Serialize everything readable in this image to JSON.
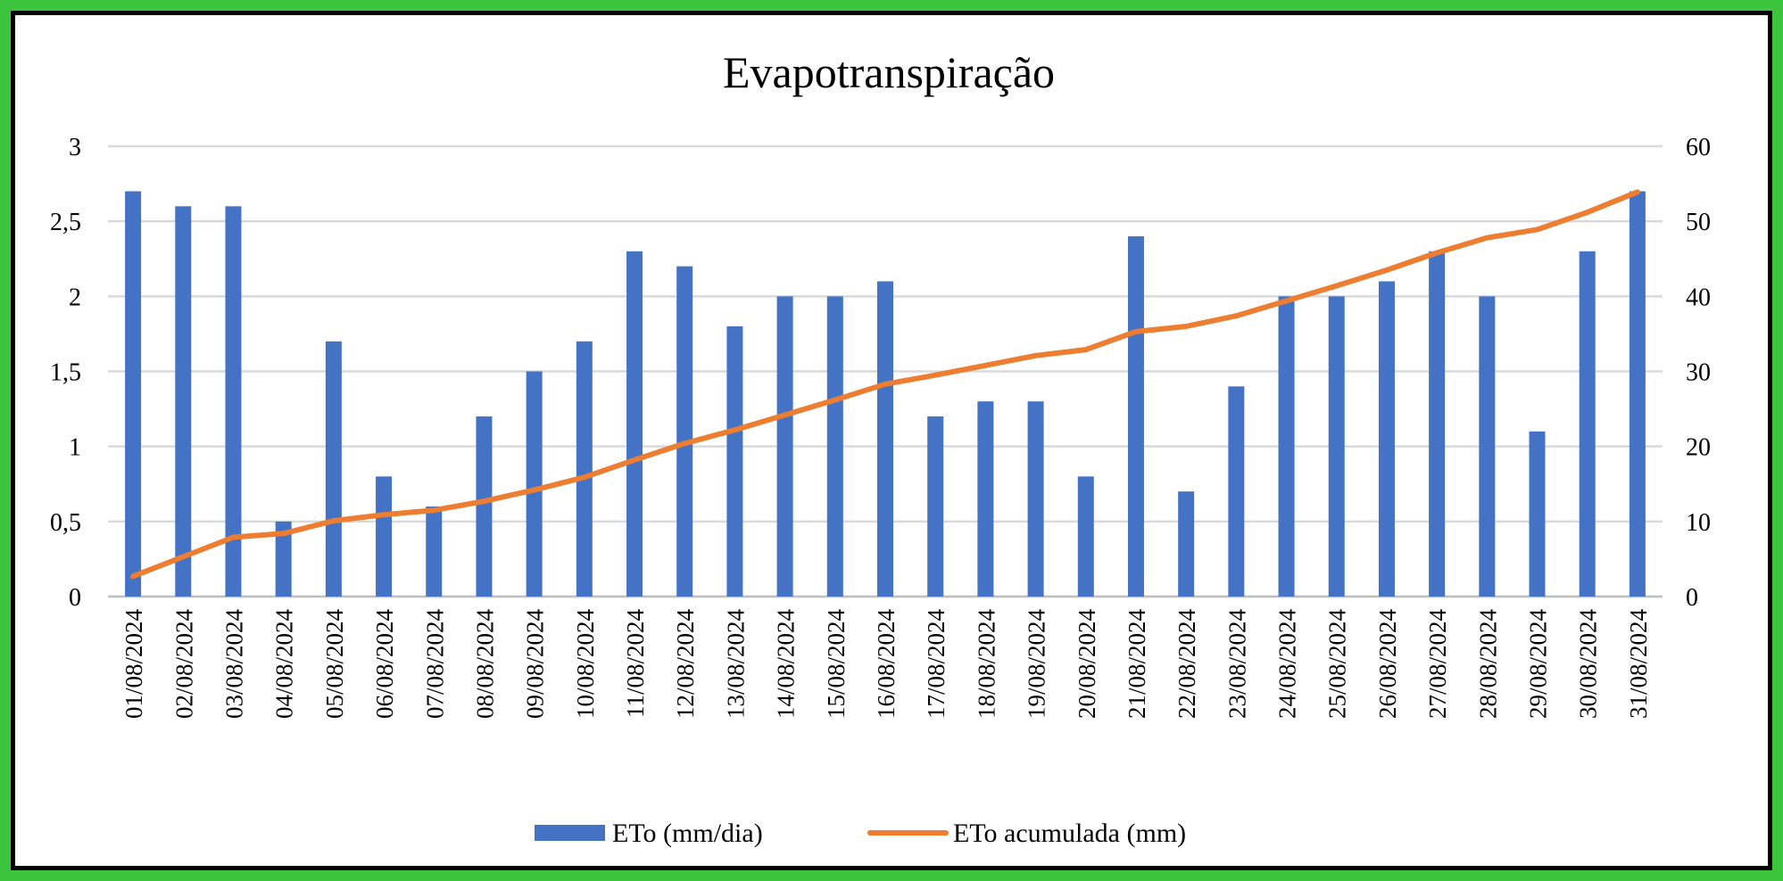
{
  "chart_data": {
    "type": "bar_line",
    "title": "Evapotranspiração",
    "categories": [
      "01/08/2024",
      "02/08/2024",
      "03/08/2024",
      "04/08/2024",
      "05/08/2024",
      "06/08/2024",
      "07/08/2024",
      "08/08/2024",
      "09/08/2024",
      "10/08/2024",
      "11/08/2024",
      "12/08/2024",
      "13/08/2024",
      "14/08/2024",
      "15/08/2024",
      "16/08/2024",
      "17/08/2024",
      "18/08/2024",
      "19/08/2024",
      "20/08/2024",
      "21/08/2024",
      "22/08/2024",
      "23/08/2024",
      "24/08/2024",
      "25/08/2024",
      "26/08/2024",
      "27/08/2024",
      "28/08/2024",
      "29/08/2024",
      "30/08/2024",
      "31/08/2024"
    ],
    "series": [
      {
        "name": "ETo (mm/dia)",
        "type": "bar",
        "color": "#4472c4",
        "axis": "y",
        "values": [
          2.7,
          2.6,
          2.6,
          0.5,
          1.7,
          0.8,
          0.6,
          1.2,
          1.5,
          1.7,
          2.3,
          2.2,
          1.8,
          2.0,
          2.0,
          2.1,
          1.2,
          1.3,
          1.3,
          0.8,
          2.4,
          0.7,
          1.4,
          2.0,
          2.0,
          2.1,
          2.3,
          2.0,
          1.1,
          2.3,
          2.7
        ]
      },
      {
        "name": "ETo acumulada (mm)",
        "type": "line",
        "color": "#ed7d31",
        "axis": "y2",
        "values": [
          2.7,
          5.3,
          7.9,
          8.4,
          10.1,
          10.9,
          11.5,
          12.7,
          14.2,
          15.9,
          18.2,
          20.4,
          22.2,
          24.2,
          26.2,
          28.3,
          29.5,
          30.8,
          32.1,
          32.9,
          35.3,
          36.0,
          37.4,
          39.4,
          41.4,
          43.5,
          45.8,
          47.8,
          48.9,
          51.2,
          53.9
        ]
      }
    ],
    "ylim": [
      0,
      3
    ],
    "yticks": [
      0,
      {
        "value": 0.5,
        "label": "0,5"
      },
      1,
      {
        "value": 1.5,
        "label": "1,5"
      },
      2,
      {
        "value": 2.5,
        "label": "2,5"
      },
      3
    ],
    "y2lim": [
      0,
      60
    ],
    "y2ticks": [
      0,
      10,
      20,
      30,
      40,
      50,
      60
    ],
    "grid": true,
    "legend": "bottom"
  }
}
